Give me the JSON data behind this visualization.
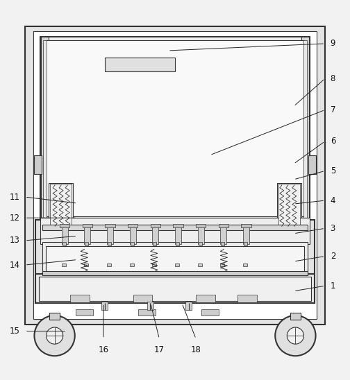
{
  "bg_color": "#f2f2f2",
  "lc": "#333333",
  "lc2": "#555555",
  "fc_outer": "#e8e8e8",
  "fc_inner": "#f8f8f8",
  "fc_panel": "#ffffff",
  "fc_gray": "#d0d0d0",
  "fc_mid": "#e0e0e0",
  "figsize": [
    5.04,
    5.48
  ],
  "dpi": 100,
  "right_labels": {
    "9": [
      0.945,
      0.92,
      0.48,
      0.9
    ],
    "8": [
      0.945,
      0.82,
      0.84,
      0.74
    ],
    "7": [
      0.945,
      0.73,
      0.6,
      0.6
    ],
    "6": [
      0.945,
      0.64,
      0.84,
      0.575
    ],
    "5": [
      0.945,
      0.555,
      0.84,
      0.53
    ],
    "4": [
      0.945,
      0.47,
      0.84,
      0.46
    ],
    "3": [
      0.945,
      0.39,
      0.84,
      0.375
    ],
    "2": [
      0.945,
      0.31,
      0.84,
      0.295
    ],
    "1": [
      0.945,
      0.225,
      0.84,
      0.21
    ]
  },
  "left_labels": {
    "11": [
      0.055,
      0.48,
      0.22,
      0.462
    ],
    "12": [
      0.055,
      0.42,
      0.22,
      0.42
    ],
    "13": [
      0.055,
      0.355,
      0.22,
      0.368
    ],
    "14": [
      0.055,
      0.285,
      0.22,
      0.3
    ],
    "15": [
      0.055,
      0.095,
      0.19,
      0.095
    ]
  },
  "bottom_labels": {
    "16": [
      0.295,
      0.055,
      0.295,
      0.175
    ],
    "17": [
      0.455,
      0.055,
      0.43,
      0.175
    ],
    "18": [
      0.56,
      0.055,
      0.52,
      0.175
    ]
  }
}
